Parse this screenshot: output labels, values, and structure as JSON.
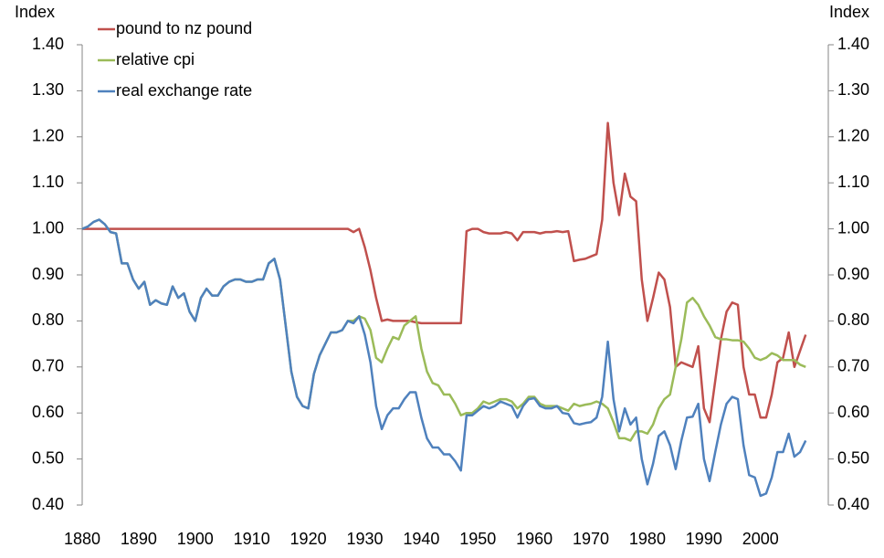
{
  "chart_data": {
    "type": "line",
    "y_axis_label": "Index",
    "y2_axis_label": "Index",
    "x": [
      1880,
      1881,
      1882,
      1883,
      1884,
      1885,
      1886,
      1887,
      1888,
      1889,
      1890,
      1891,
      1892,
      1893,
      1894,
      1895,
      1896,
      1897,
      1898,
      1899,
      1900,
      1901,
      1902,
      1903,
      1904,
      1905,
      1906,
      1907,
      1908,
      1909,
      1910,
      1911,
      1912,
      1913,
      1914,
      1915,
      1916,
      1917,
      1918,
      1919,
      1920,
      1921,
      1922,
      1923,
      1924,
      1925,
      1926,
      1927,
      1928,
      1929,
      1930,
      1931,
      1932,
      1933,
      1934,
      1935,
      1936,
      1937,
      1938,
      1939,
      1940,
      1941,
      1942,
      1943,
      1944,
      1945,
      1946,
      1947,
      1948,
      1949,
      1950,
      1951,
      1952,
      1953,
      1954,
      1955,
      1956,
      1957,
      1958,
      1959,
      1960,
      1961,
      1962,
      1963,
      1964,
      1965,
      1966,
      1967,
      1968,
      1969,
      1970,
      1971,
      1972,
      1973,
      1974,
      1975,
      1976,
      1977,
      1978,
      1979,
      1980,
      1981,
      1982,
      1983,
      1984,
      1985,
      1986,
      1987,
      1988,
      1989,
      1990,
      1991,
      1992,
      1993,
      1994,
      1995,
      1996,
      1997,
      1998,
      1999,
      2000,
      2001,
      2002,
      2003,
      2004,
      2005,
      2006,
      2007,
      2008
    ],
    "series": [
      {
        "name": "pound to nz pound",
        "color": "#c0504d",
        "values": [
          1,
          1,
          1,
          1,
          1,
          1,
          1,
          1,
          1,
          1,
          1,
          1,
          1,
          1,
          1,
          1,
          1,
          1,
          1,
          1,
          1,
          1,
          1,
          1,
          1,
          1,
          1,
          1,
          1,
          1,
          1,
          1,
          1,
          1,
          1,
          1,
          1,
          1,
          1,
          1,
          1,
          1,
          1,
          1,
          1,
          1,
          1,
          1,
          0.993,
          1,
          0.96,
          0.91,
          0.85,
          0.8,
          0.803,
          0.8,
          0.8,
          0.8,
          0.8,
          0.797,
          0.795,
          0.795,
          0.795,
          0.795,
          0.795,
          0.795,
          0.795,
          0.795,
          0.995,
          1,
          1,
          0.993,
          0.99,
          0.99,
          0.99,
          0.993,
          0.99,
          0.975,
          0.993,
          0.993,
          0.993,
          0.99,
          0.993,
          0.993,
          0.995,
          0.993,
          0.995,
          0.93,
          0.933,
          0.935,
          0.94,
          0.945,
          1.02,
          1.23,
          1.1,
          1.03,
          1.12,
          1.07,
          1.06,
          0.89,
          0.8,
          0.85,
          0.905,
          0.89,
          0.83,
          0.7,
          0.71,
          0.705,
          0.7,
          0.745,
          0.61,
          0.58,
          0.67,
          0.76,
          0.82,
          0.84,
          0.835,
          0.7,
          0.64,
          0.64,
          0.59,
          0.59,
          0.64,
          0.71,
          0.72,
          0.775,
          0.7,
          0.735,
          0.77
        ]
      },
      {
        "name": "relative cpi",
        "color": "#9bbb59",
        "values": [
          1,
          1.005,
          1.015,
          1.02,
          1.01,
          0.993,
          0.99,
          0.925,
          0.925,
          0.89,
          0.87,
          0.885,
          0.835,
          0.845,
          0.838,
          0.835,
          0.875,
          0.85,
          0.86,
          0.82,
          0.8,
          0.85,
          0.87,
          0.855,
          0.855,
          0.875,
          0.885,
          0.89,
          0.89,
          0.885,
          0.885,
          0.89,
          0.89,
          0.925,
          0.935,
          0.89,
          0.79,
          0.69,
          0.635,
          0.615,
          0.61,
          0.685,
          0.725,
          0.75,
          0.775,
          0.775,
          0.78,
          0.8,
          0.8,
          0.81,
          0.805,
          0.78,
          0.72,
          0.71,
          0.74,
          0.765,
          0.76,
          0.79,
          0.8,
          0.81,
          0.74,
          0.69,
          0.665,
          0.66,
          0.64,
          0.64,
          0.62,
          0.595,
          0.6,
          0.6,
          0.61,
          0.625,
          0.62,
          0.625,
          0.63,
          0.63,
          0.625,
          0.61,
          0.62,
          0.635,
          0.635,
          0.62,
          0.615,
          0.615,
          0.615,
          0.61,
          0.605,
          0.62,
          0.615,
          0.618,
          0.62,
          0.625,
          0.62,
          0.61,
          0.58,
          0.545,
          0.545,
          0.54,
          0.56,
          0.56,
          0.555,
          0.575,
          0.61,
          0.63,
          0.64,
          0.7,
          0.76,
          0.84,
          0.85,
          0.835,
          0.81,
          0.79,
          0.765,
          0.76,
          0.76,
          0.758,
          0.758,
          0.755,
          0.74,
          0.72,
          0.715,
          0.72,
          0.73,
          0.725,
          0.715,
          0.715,
          0.715,
          0.705,
          0.7
        ]
      },
      {
        "name": "real exchange rate",
        "color": "#4f81bd",
        "values": [
          1,
          1.005,
          1.015,
          1.02,
          1.01,
          0.993,
          0.99,
          0.925,
          0.925,
          0.89,
          0.87,
          0.885,
          0.835,
          0.845,
          0.838,
          0.835,
          0.875,
          0.85,
          0.86,
          0.82,
          0.8,
          0.85,
          0.87,
          0.855,
          0.855,
          0.875,
          0.885,
          0.89,
          0.89,
          0.885,
          0.885,
          0.89,
          0.89,
          0.925,
          0.935,
          0.89,
          0.79,
          0.69,
          0.635,
          0.615,
          0.61,
          0.685,
          0.725,
          0.75,
          0.775,
          0.775,
          0.78,
          0.8,
          0.795,
          0.81,
          0.77,
          0.71,
          0.615,
          0.565,
          0.595,
          0.61,
          0.61,
          0.63,
          0.645,
          0.645,
          0.59,
          0.545,
          0.525,
          0.525,
          0.51,
          0.51,
          0.495,
          0.475,
          0.595,
          0.595,
          0.605,
          0.615,
          0.61,
          0.615,
          0.625,
          0.62,
          0.615,
          0.59,
          0.615,
          0.63,
          0.632,
          0.615,
          0.61,
          0.61,
          0.615,
          0.6,
          0.598,
          0.578,
          0.575,
          0.578,
          0.58,
          0.59,
          0.635,
          0.755,
          0.63,
          0.56,
          0.61,
          0.575,
          0.59,
          0.5,
          0.445,
          0.49,
          0.55,
          0.56,
          0.53,
          0.478,
          0.54,
          0.59,
          0.592,
          0.62,
          0.5,
          0.452,
          0.515,
          0.575,
          0.62,
          0.635,
          0.63,
          0.53,
          0.465,
          0.46,
          0.42,
          0.425,
          0.46,
          0.515,
          0.515,
          0.555,
          0.505,
          0.515,
          0.54
        ]
      }
    ],
    "xlim": [
      1880,
      2012
    ],
    "xticks": [
      1880,
      1890,
      1900,
      1910,
      1920,
      1930,
      1940,
      1950,
      1960,
      1970,
      1980,
      1990,
      2000
    ],
    "ylim": [
      0.4,
      1.4
    ],
    "yticks": [
      {
        "value": 0.4,
        "label": "0.40"
      },
      {
        "value": 0.5,
        "label": "0.50"
      },
      {
        "value": 0.6,
        "label": "0.60"
      },
      {
        "value": 0.7,
        "label": "0.70"
      },
      {
        "value": 0.8,
        "label": "0.80"
      },
      {
        "value": 0.9,
        "label": "0.90"
      },
      {
        "value": 1.0,
        "label": "1.00"
      },
      {
        "value": 1.1,
        "label": "1.10"
      },
      {
        "value": 1.2,
        "label": "1.20"
      },
      {
        "value": 1.3,
        "label": "1.30"
      },
      {
        "value": 1.4,
        "label": "1.40"
      }
    ],
    "y2lim": [
      0.4,
      1.4
    ],
    "y2ticks": [
      {
        "value": 0.4,
        "label": "0.40"
      },
      {
        "value": 0.5,
        "label": "0.50"
      },
      {
        "value": 0.6,
        "label": "0.60"
      },
      {
        "value": 0.7,
        "label": "0.70"
      },
      {
        "value": 0.8,
        "label": "0.80"
      },
      {
        "value": 0.9,
        "label": "0.90"
      },
      {
        "value": 1.0,
        "label": "1.00"
      },
      {
        "value": 1.1,
        "label": "1.10"
      },
      {
        "value": 1.2,
        "label": "1.20"
      },
      {
        "value": 1.3,
        "label": "1.30"
      },
      {
        "value": 1.4,
        "label": "1.40"
      }
    ],
    "legend": "upper left",
    "grid": false
  }
}
